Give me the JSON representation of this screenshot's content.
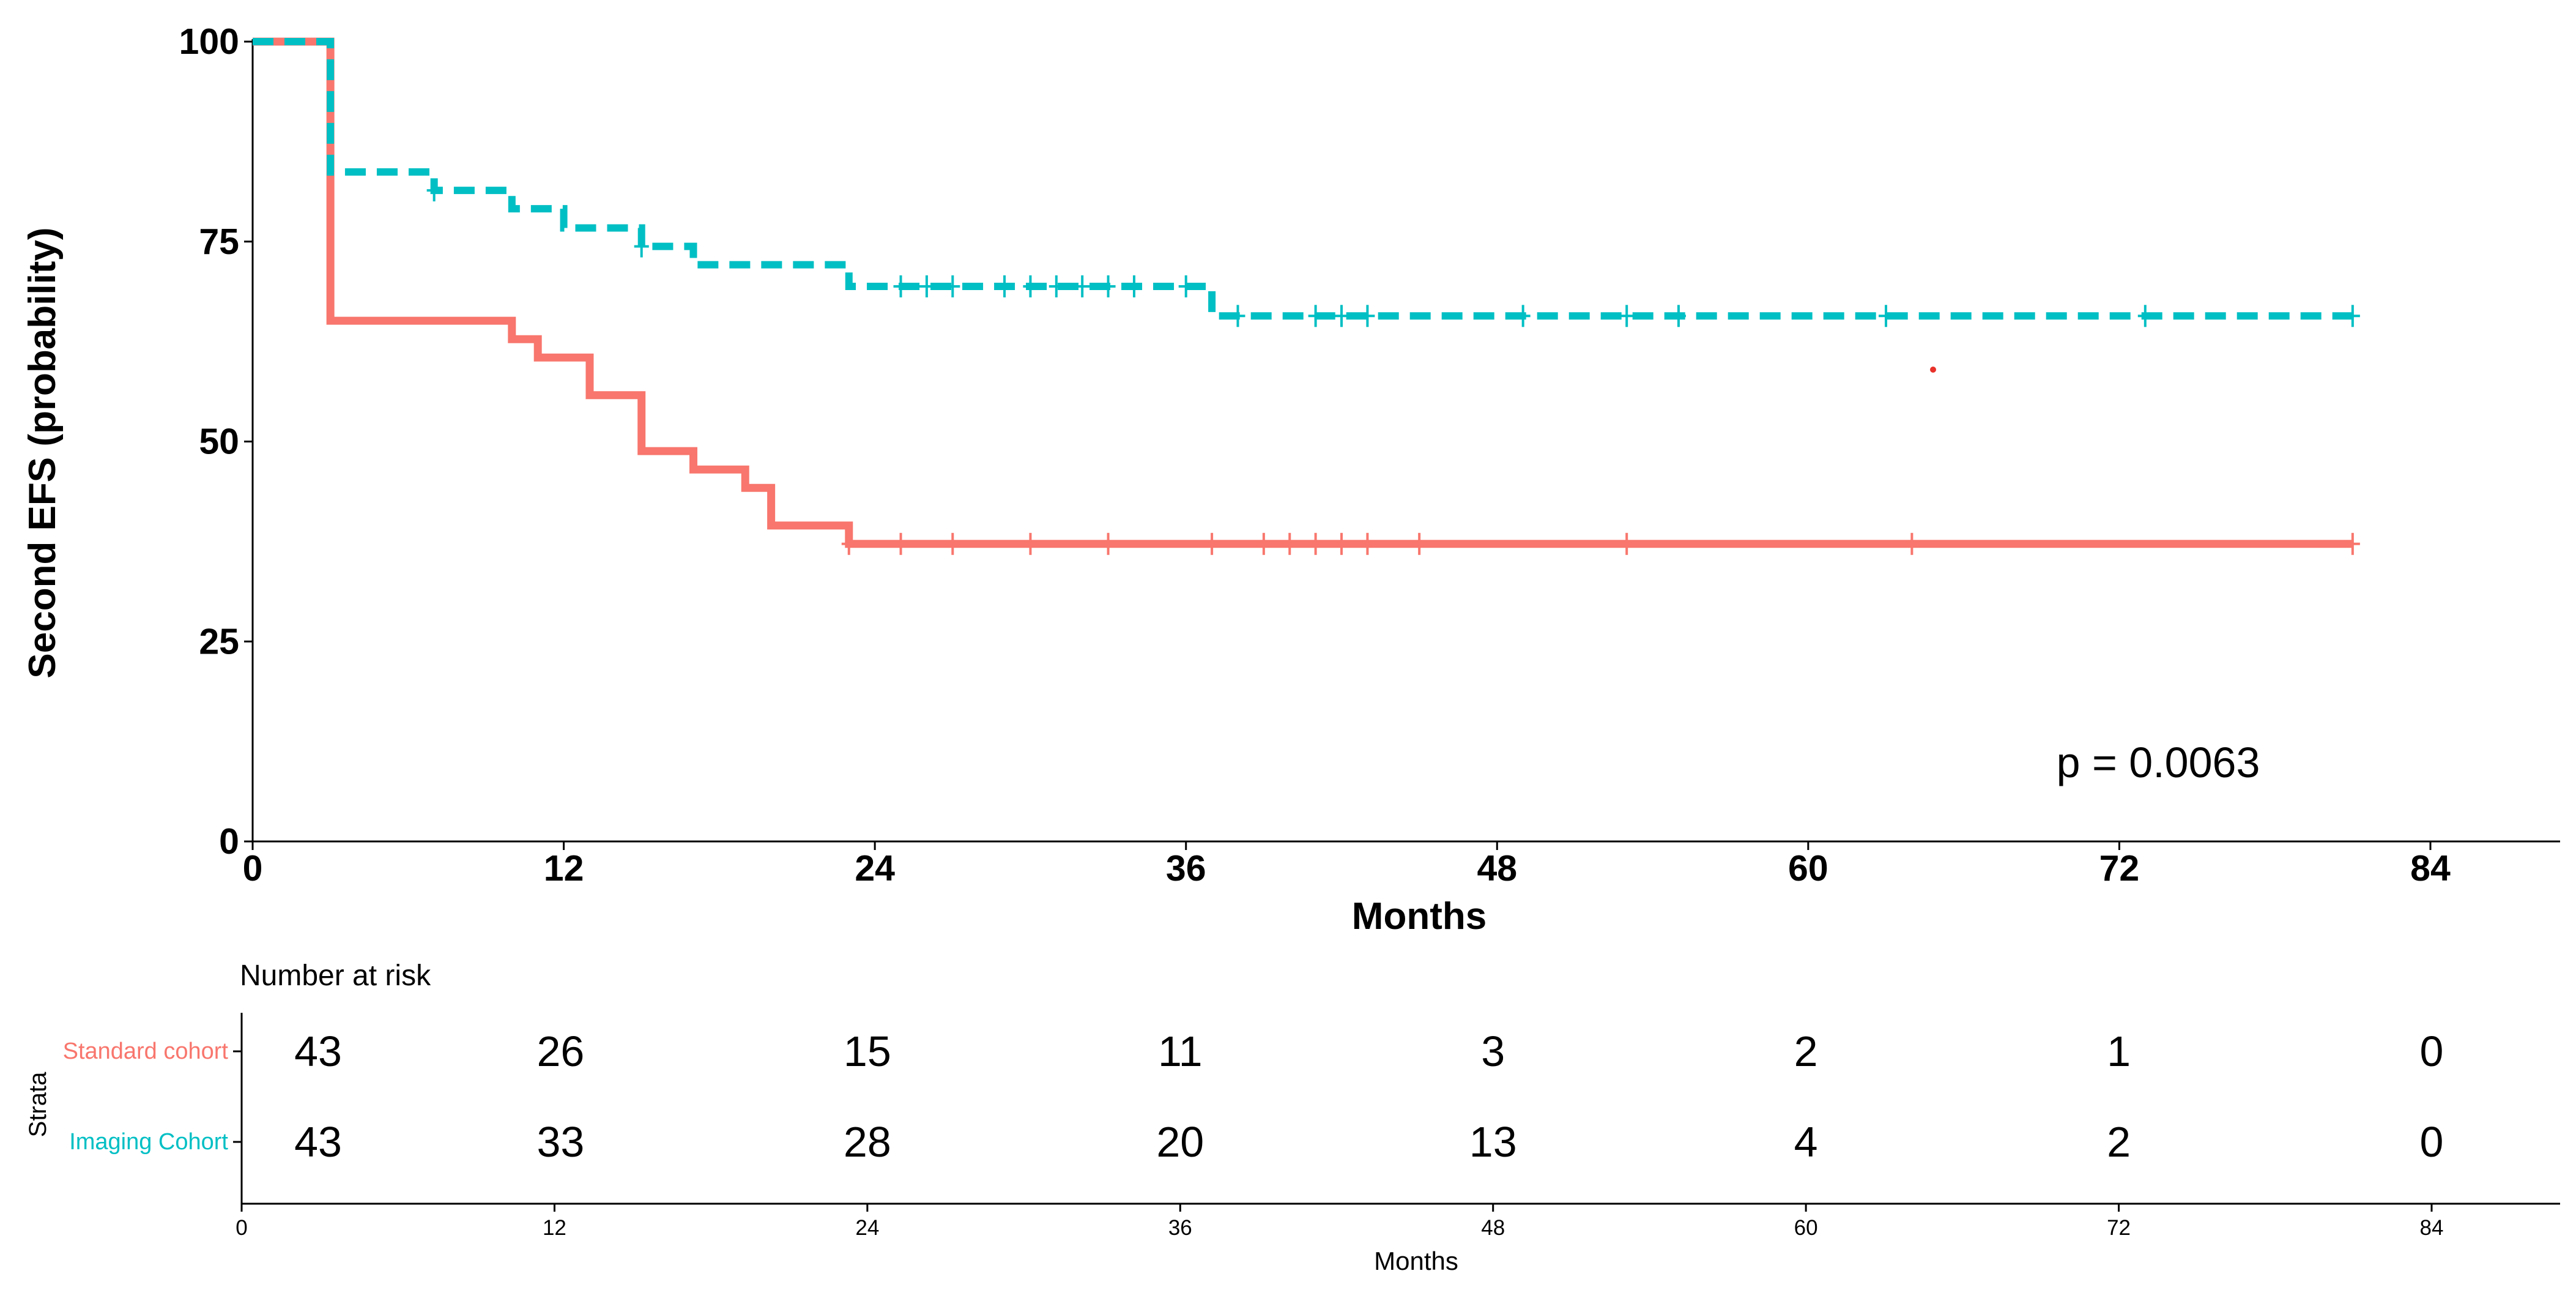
{
  "chart_data": {
    "type": "line",
    "subtype": "kaplan-meier",
    "ylabel": "Second EFS (probability)",
    "xlabel": "Months",
    "xlim": [
      0,
      84
    ],
    "ylim": [
      0,
      100
    ],
    "xticks": [
      0,
      12,
      24,
      36,
      48,
      60,
      72,
      84
    ],
    "yticks": [
      0,
      25,
      50,
      75,
      100
    ],
    "grid": false,
    "annotation": "p = 0.0063",
    "series": [
      {
        "name": "Standard cohort",
        "color": "#F8766D",
        "line_style": "solid",
        "steps": [
          [
            0,
            100
          ],
          [
            3,
            65.1
          ],
          [
            10,
            62.8
          ],
          [
            11,
            60.5
          ],
          [
            13,
            55.8
          ],
          [
            15,
            48.8
          ],
          [
            17,
            46.5
          ],
          [
            19,
            44.2
          ],
          [
            20,
            39.5
          ],
          [
            23,
            37.2
          ],
          [
            81,
            37.2
          ]
        ],
        "censored": [
          23,
          25,
          27,
          30,
          33,
          37,
          39,
          40,
          41,
          42,
          43,
          45,
          53,
          64,
          81
        ]
      },
      {
        "name": "Imaging Cohort",
        "color": "#00BFC4",
        "line_style": "dashed",
        "steps": [
          [
            0,
            100
          ],
          [
            3,
            83.7
          ],
          [
            7,
            81.4
          ],
          [
            10,
            79.1
          ],
          [
            12,
            76.7
          ],
          [
            15,
            74.4
          ],
          [
            17,
            72.1
          ],
          [
            23,
            69.4
          ],
          [
            37,
            65.7
          ],
          [
            81,
            65.7
          ]
        ],
        "censored": [
          7,
          15,
          25,
          26,
          27,
          29,
          30,
          31,
          32,
          33,
          34,
          36,
          38,
          41,
          42,
          43,
          49,
          53,
          55,
          63,
          73,
          81
        ]
      }
    ]
  },
  "risk_table": {
    "title": "Number at risk",
    "strata_label": "Strata",
    "xlabel": "Months",
    "xticks": [
      0,
      12,
      24,
      36,
      48,
      60,
      72,
      84
    ],
    "rows": [
      {
        "name": "Standard cohort",
        "color": "#F8766D",
        "counts": [
          "43",
          "26",
          "15",
          "11",
          "3",
          "2",
          "1",
          "0"
        ]
      },
      {
        "name": "Imaging Cohort",
        "color": "#00BFC4",
        "counts": [
          "43",
          "33",
          "28",
          "20",
          "13",
          "4",
          "2",
          "0"
        ]
      }
    ]
  }
}
